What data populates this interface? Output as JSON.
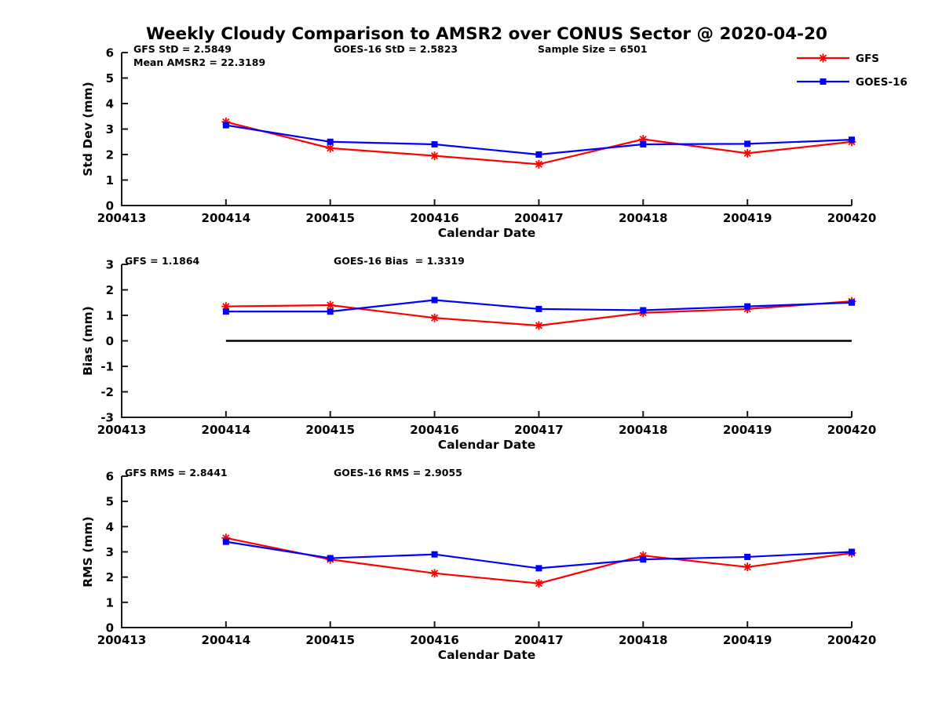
{
  "page": {
    "title": "Weekly Cloudy Comparison to AMSR2 over CONUS Sector @ 2020-04-20"
  },
  "legend": {
    "position": "top-right",
    "entries": [
      {
        "label": "GFS",
        "color": "#ff0000",
        "marker": "asterisk"
      },
      {
        "label": "GOES-16",
        "color": "#0000ff",
        "marker": "square"
      }
    ]
  },
  "chart_data": [
    {
      "type": "line",
      "name": "std-dev-panel",
      "ylabel": "Std Dev (mm)",
      "xlabel": "Calendar Date",
      "ylim": [
        0,
        6
      ],
      "yticks": [
        0,
        1,
        2,
        3,
        4,
        5,
        6
      ],
      "categories": [
        "200413",
        "200414",
        "200415",
        "200416",
        "200417",
        "200418",
        "200419",
        "200420"
      ],
      "x": [
        "200414",
        "200415",
        "200416",
        "200417",
        "200418",
        "200419",
        "200420"
      ],
      "series": [
        {
          "name": "GFS",
          "color": "#ff0000",
          "marker": "asterisk",
          "values": [
            3.28,
            2.25,
            1.95,
            1.62,
            2.6,
            2.05,
            2.5
          ]
        },
        {
          "name": "GOES-16",
          "color": "#0000ff",
          "marker": "square",
          "values": [
            3.15,
            2.5,
            2.4,
            2.0,
            2.4,
            2.42,
            2.58
          ]
        }
      ],
      "annotations": [
        {
          "text": "GFS StD = 2.5849",
          "x_off": 15,
          "row": 0
        },
        {
          "text": "Mean AMSR2 = 22.3189",
          "x_off": 15,
          "row": 1
        },
        {
          "text": "GOES-16 StD = 2.5823",
          "x_off": 270,
          "row": 0
        },
        {
          "text": "Sample Size = 6501",
          "x_off": 530,
          "row": 0
        }
      ]
    },
    {
      "type": "line",
      "name": "bias-panel",
      "ylabel": "Bias (mm)",
      "xlabel": "Calendar Date",
      "ylim": [
        -3,
        3
      ],
      "yticks": [
        -3,
        -2,
        -1,
        0,
        1,
        2,
        3
      ],
      "categories": [
        "200413",
        "200414",
        "200415",
        "200416",
        "200417",
        "200418",
        "200419",
        "200420"
      ],
      "x": [
        "200414",
        "200415",
        "200416",
        "200417",
        "200418",
        "200419",
        "200420"
      ],
      "series": [
        {
          "name": "GFS",
          "color": "#ff0000",
          "marker": "asterisk",
          "values": [
            1.35,
            1.4,
            0.9,
            0.6,
            1.1,
            1.25,
            1.55
          ]
        },
        {
          "name": "GOES-16",
          "color": "#0000ff",
          "marker": "square",
          "values": [
            1.15,
            1.15,
            1.6,
            1.25,
            1.2,
            1.35,
            1.5
          ]
        }
      ],
      "baseline": {
        "value": 0,
        "from": "200414",
        "to": "200420",
        "color": "#000000"
      },
      "annotations": [
        {
          "text": "GFS = 1.1864",
          "x_off": 4,
          "row": 0
        },
        {
          "text": "GOES-16 Bias  = 1.3319",
          "x_off": 270,
          "row": 0
        }
      ]
    },
    {
      "type": "line",
      "name": "rms-panel",
      "ylabel": "RMS (mm)",
      "xlabel": "Calendar Date",
      "ylim": [
        0,
        6
      ],
      "yticks": [
        0,
        1,
        2,
        3,
        4,
        5,
        6
      ],
      "categories": [
        "200413",
        "200414",
        "200415",
        "200416",
        "200417",
        "200418",
        "200419",
        "200420"
      ],
      "x": [
        "200414",
        "200415",
        "200416",
        "200417",
        "200418",
        "200419",
        "200420"
      ],
      "series": [
        {
          "name": "GFS",
          "color": "#ff0000",
          "marker": "asterisk",
          "values": [
            3.55,
            2.7,
            2.15,
            1.75,
            2.85,
            2.4,
            2.95
          ]
        },
        {
          "name": "GOES-16",
          "color": "#0000ff",
          "marker": "square",
          "values": [
            3.4,
            2.75,
            2.9,
            2.35,
            2.7,
            2.8,
            3.0
          ]
        }
      ],
      "annotations": [
        {
          "text": "GFS RMS = 2.8441",
          "x_off": 4,
          "row": 0
        },
        {
          "text": "GOES-16 RMS = 2.9055",
          "x_off": 270,
          "row": 0
        }
      ]
    }
  ],
  "style": {
    "axis_color": "#1a1a1a",
    "gfs_color": "#ff0000",
    "goes_color": "#0000ff"
  }
}
